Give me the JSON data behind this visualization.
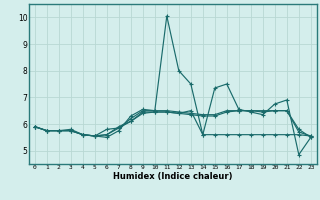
{
  "title": "",
  "xlabel": "Humidex (Indice chaleur)",
  "xlim": [
    -0.5,
    23.5
  ],
  "ylim": [
    4.5,
    10.5
  ],
  "xticks": [
    0,
    1,
    2,
    3,
    4,
    5,
    6,
    7,
    8,
    9,
    10,
    11,
    12,
    13,
    14,
    15,
    16,
    17,
    18,
    19,
    20,
    21,
    22,
    23
  ],
  "yticks": [
    5,
    6,
    7,
    8,
    9,
    10
  ],
  "background_color": "#d4eeec",
  "grid_color": "#b8d8d4",
  "line_color": "#1a6b6b",
  "spine_color": "#2a7a7a",
  "lines": [
    [
      5.9,
      5.75,
      5.75,
      5.8,
      5.6,
      5.55,
      5.5,
      5.75,
      6.3,
      6.55,
      6.5,
      10.05,
      8.0,
      7.5,
      5.6,
      7.35,
      7.5,
      6.55,
      6.45,
      6.35,
      6.75,
      6.9,
      4.85,
      5.5
    ],
    [
      5.9,
      5.75,
      5.75,
      5.75,
      5.6,
      5.55,
      5.8,
      5.85,
      6.1,
      6.45,
      6.45,
      6.45,
      6.4,
      6.5,
      5.6,
      5.6,
      5.6,
      5.6,
      5.6,
      5.6,
      5.6,
      5.6,
      5.6,
      5.55
    ],
    [
      5.9,
      5.75,
      5.75,
      5.75,
      5.6,
      5.55,
      5.6,
      5.9,
      6.1,
      6.4,
      6.45,
      6.45,
      6.4,
      6.35,
      6.3,
      6.3,
      6.45,
      6.5,
      6.5,
      6.5,
      6.5,
      6.5,
      5.7,
      5.55
    ],
    [
      5.9,
      5.75,
      5.75,
      5.75,
      5.6,
      5.55,
      5.6,
      5.85,
      6.2,
      6.5,
      6.5,
      6.5,
      6.45,
      6.4,
      6.35,
      6.35,
      6.5,
      6.5,
      6.5,
      6.45,
      6.5,
      6.5,
      5.8,
      5.5
    ]
  ]
}
